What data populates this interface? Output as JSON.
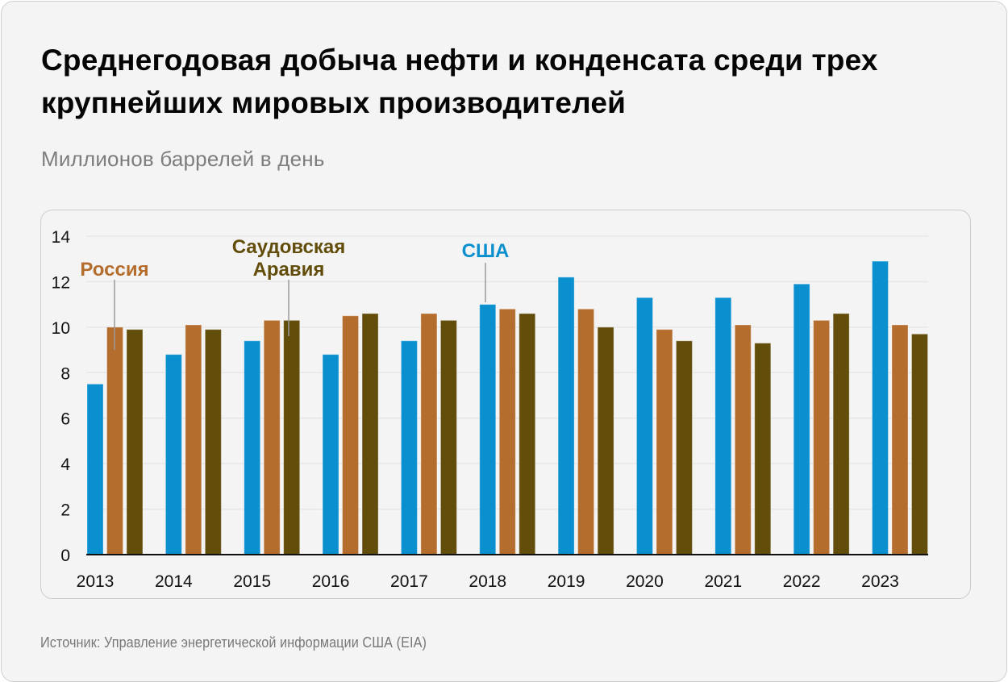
{
  "title": "Среднегодовая добыча нефти и конденсата среди трех крупнейших мировых производителей",
  "subtitle": "Миллионов баррелей в день",
  "source": "Источник: Управление энергетической информации США (EIA)",
  "chart_data": {
    "type": "bar",
    "title": "Среднегодовая добыча нефти и конденсата среди трех крупнейших мировых производителей",
    "subtitle": "Миллионов баррелей в день",
    "xlabel": "",
    "ylabel": "Миллионов баррелей в день",
    "ylim": [
      0,
      14
    ],
    "yticks": [
      0,
      2,
      4,
      6,
      8,
      10,
      12,
      14
    ],
    "grid": true,
    "categories": [
      "2013",
      "2014",
      "2015",
      "2016",
      "2017",
      "2018",
      "2019",
      "2020",
      "2021",
      "2022",
      "2023"
    ],
    "series": [
      {
        "name": "США",
        "color": "#0a8fcf",
        "values": [
          7.5,
          8.8,
          9.4,
          8.8,
          9.4,
          11.0,
          12.2,
          11.3,
          11.3,
          11.9,
          12.9
        ]
      },
      {
        "name": "Россия",
        "color": "#b56d2d",
        "values": [
          10.0,
          10.1,
          10.3,
          10.5,
          10.6,
          10.8,
          10.8,
          9.9,
          10.1,
          10.3,
          10.1
        ]
      },
      {
        "name": "Саудовская Аравия",
        "color": "#624d0a",
        "values": [
          9.9,
          9.9,
          10.3,
          10.6,
          10.3,
          10.6,
          10.0,
          9.4,
          9.3,
          10.6,
          9.7
        ]
      }
    ],
    "annotations": [
      {
        "series": "Россия",
        "lines": [
          "Россия"
        ],
        "category": "2013"
      },
      {
        "series": "Саудовская Аравия",
        "lines": [
          "Саудовская",
          "Аравия"
        ],
        "category": "2015"
      },
      {
        "series": "США",
        "lines": [
          "США"
        ],
        "category": "2018"
      }
    ],
    "legend": "inline-annotations"
  }
}
